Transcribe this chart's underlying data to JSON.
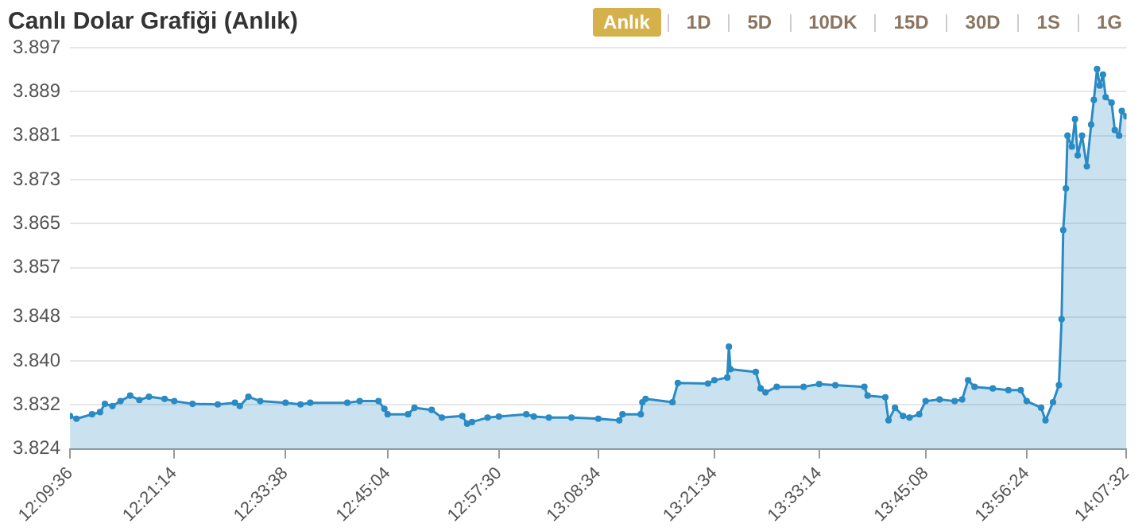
{
  "chart_data": {
    "type": "area",
    "title": "Canlı Dolar Grafiği (Anlık)",
    "annotations": [
      "Anlık",
      "1D",
      "5D",
      "10DK",
      "15D",
      "30D",
      "1S",
      "1G"
    ],
    "x": [
      12.16,
      12.172,
      12.201,
      12.216,
      12.225,
      12.239,
      12.254,
      12.272,
      12.289,
      12.307,
      12.336,
      12.354,
      12.388,
      12.435,
      12.467,
      12.476,
      12.492,
      12.514,
      12.561,
      12.589,
      12.607,
      12.676,
      12.699,
      12.734,
      12.745,
      12.751,
      12.789,
      12.801,
      12.833,
      12.852,
      12.89,
      12.899,
      12.908,
      12.937,
      12.958,
      13.009,
      13.023,
      13.051,
      13.093,
      13.143,
      13.182,
      13.188,
      13.222,
      13.225,
      13.231,
      13.281,
      13.291,
      13.347,
      13.359,
      13.383,
      13.386,
      13.389,
      13.436,
      13.445,
      13.454,
      13.475,
      13.525,
      13.554,
      13.584,
      13.638,
      13.644,
      13.677,
      13.683,
      13.695,
      13.71,
      13.722,
      13.74,
      13.752,
      13.778,
      13.806,
      13.82,
      13.831,
      13.843,
      13.877,
      13.906,
      13.929,
      13.94,
      13.967,
      13.975,
      13.989,
      14.0,
      14.005,
      14.008,
      14.013,
      14.016,
      14.024,
      14.03,
      14.035,
      14.043,
      14.052,
      14.06,
      14.065,
      14.071,
      14.076,
      14.082,
      14.087,
      14.098,
      14.104,
      14.112,
      14.117,
      14.1256
    ],
    "series": [
      {
        "color": "#2a8bc4",
        "values": [
          3.83,
          3.8295,
          3.8303,
          3.8307,
          3.8322,
          3.8318,
          3.8327,
          3.8337,
          3.8329,
          3.8335,
          3.8331,
          3.8327,
          3.8322,
          3.8321,
          3.8324,
          3.8318,
          3.8335,
          3.8327,
          3.8324,
          3.8321,
          3.8324,
          3.8324,
          3.8327,
          3.8327,
          3.8313,
          3.8303,
          3.8303,
          3.8315,
          3.8311,
          3.8297,
          3.83,
          3.8286,
          3.8289,
          3.8297,
          3.8299,
          3.8303,
          3.8299,
          3.8297,
          3.8297,
          3.8295,
          3.8292,
          3.8303,
          3.8303,
          3.8325,
          3.8331,
          3.8325,
          3.836,
          3.8359,
          3.8365,
          3.837,
          3.8426,
          3.8385,
          3.838,
          3.835,
          3.8343,
          3.8353,
          3.8353,
          3.8358,
          3.8356,
          3.8353,
          3.8337,
          3.8334,
          3.8292,
          3.8315,
          3.83,
          3.8297,
          3.8303,
          3.8327,
          3.833,
          3.8327,
          3.833,
          3.8365,
          3.8353,
          3.835,
          3.8347,
          3.8347,
          3.8327,
          3.8315,
          3.8292,
          3.8325,
          3.8356,
          3.8476,
          3.8638,
          3.8714,
          3.881,
          3.879,
          3.884,
          3.8774,
          3.881,
          3.8754,
          3.883,
          3.8875,
          3.8931,
          3.8901,
          3.8921,
          3.888,
          3.887,
          3.882,
          3.881,
          3.8855,
          3.8845
        ]
      }
    ],
    "xlim": [
      12.16,
      14.1256
    ],
    "xticks": [
      {
        "value": 12.16,
        "label": "12:09:36"
      },
      {
        "value": 12.353889,
        "label": "12:21:14"
      },
      {
        "value": 12.560556,
        "label": "12:33:38"
      },
      {
        "value": 12.751111,
        "label": "12:45:04"
      },
      {
        "value": 12.958333,
        "label": "12:57:30"
      },
      {
        "value": 13.142778,
        "label": "13:08:34"
      },
      {
        "value": 13.359444,
        "label": "13:21:34"
      },
      {
        "value": 13.553889,
        "label": "13:33:14"
      },
      {
        "value": 13.752222,
        "label": "13:45:08"
      },
      {
        "value": 13.94,
        "label": "13:56:24"
      },
      {
        "value": 14.125556,
        "label": "14:07:32"
      }
    ],
    "ylim": [
      3.824,
      3.897
    ],
    "yticks": [
      3.824,
      {
        "value": 3.832,
        "label": "3.832"
      },
      {
        "value": 3.84,
        "label": "3.840"
      },
      3.848,
      3.857,
      3.865,
      3.873,
      3.881,
      3.889,
      3.897
    ],
    "grid": "y",
    "marker": "circle",
    "line_style": "solid"
  }
}
